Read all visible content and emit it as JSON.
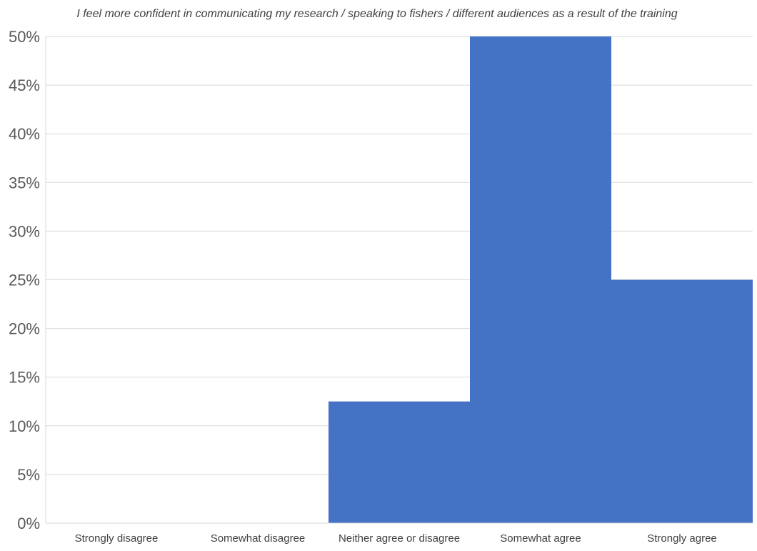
{
  "chart_data": {
    "type": "bar",
    "title": "I feel more confident in communicating my research / speaking to fishers / different audiences as a result of the training",
    "categories": [
      "Strongly disagree",
      "Somewhat disagree",
      "Neither agree or disagree",
      "Somewhat agree",
      "Strongly agree"
    ],
    "values": [
      0,
      0,
      12.5,
      50,
      25
    ],
    "unit": "%",
    "ylim": [
      0,
      50
    ],
    "yticks": [
      "0%",
      "5%",
      "10%",
      "15%",
      "20%",
      "25%",
      "30%",
      "35%",
      "40%",
      "45%",
      "50%"
    ],
    "grid": true,
    "bar_color": "#4472C4",
    "grid_color": "#D9D9D9",
    "legend": "none"
  }
}
